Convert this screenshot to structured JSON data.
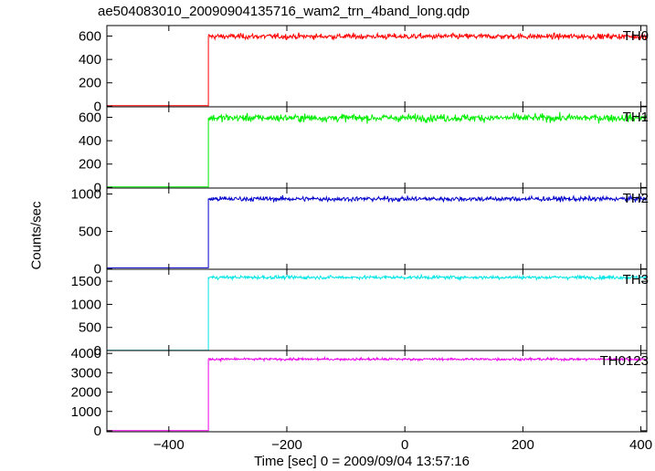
{
  "chart_data": {
    "type": "line",
    "title": "ae504083010_20090904135716_wam2_trn_4band_long.qdp",
    "xlabel": "Time [sec] 0 = 2009/09/04 13:57:16",
    "ylabel": "Counts/sec",
    "xlim": [
      -505,
      410
    ],
    "xticks": [
      -400,
      -200,
      0,
      200,
      400
    ],
    "xtick_labels": [
      "−400",
      "−200",
      "0",
      "200",
      "400"
    ],
    "onset_time": -333,
    "panels": [
      {
        "name": "TH0",
        "color": "#ff0000",
        "ylim": [
          -5,
          690
        ],
        "yticks": [
          0,
          200,
          400,
          600
        ],
        "pre_level": 5,
        "post_level": 597,
        "noise": 22
      },
      {
        "name": "TH1",
        "color": "#00ee00",
        "ylim": [
          -5,
          690
        ],
        "yticks": [
          0,
          200,
          400,
          600
        ],
        "pre_level": 5,
        "post_level": 595,
        "noise": 30
      },
      {
        "name": "TH2",
        "color": "#0000cc",
        "ylim": [
          -5,
          1080
        ],
        "yticks": [
          0,
          500,
          1000
        ],
        "pre_level": 15,
        "post_level": 935,
        "noise": 30
      },
      {
        "name": "TH3",
        "color": "#00e5e5",
        "ylim": [
          0,
          1760
        ],
        "yticks": [
          0,
          500,
          1000,
          1500
        ],
        "pre_level": 5,
        "post_level": 1585,
        "noise": 35
      },
      {
        "name": "TH0123",
        "color": "#ee00ee",
        "ylim": [
          -50,
          4150
        ],
        "yticks": [
          0,
          1000,
          2000,
          3000,
          4000
        ],
        "pre_level": 5,
        "post_level": 3700,
        "noise": 60
      }
    ]
  }
}
